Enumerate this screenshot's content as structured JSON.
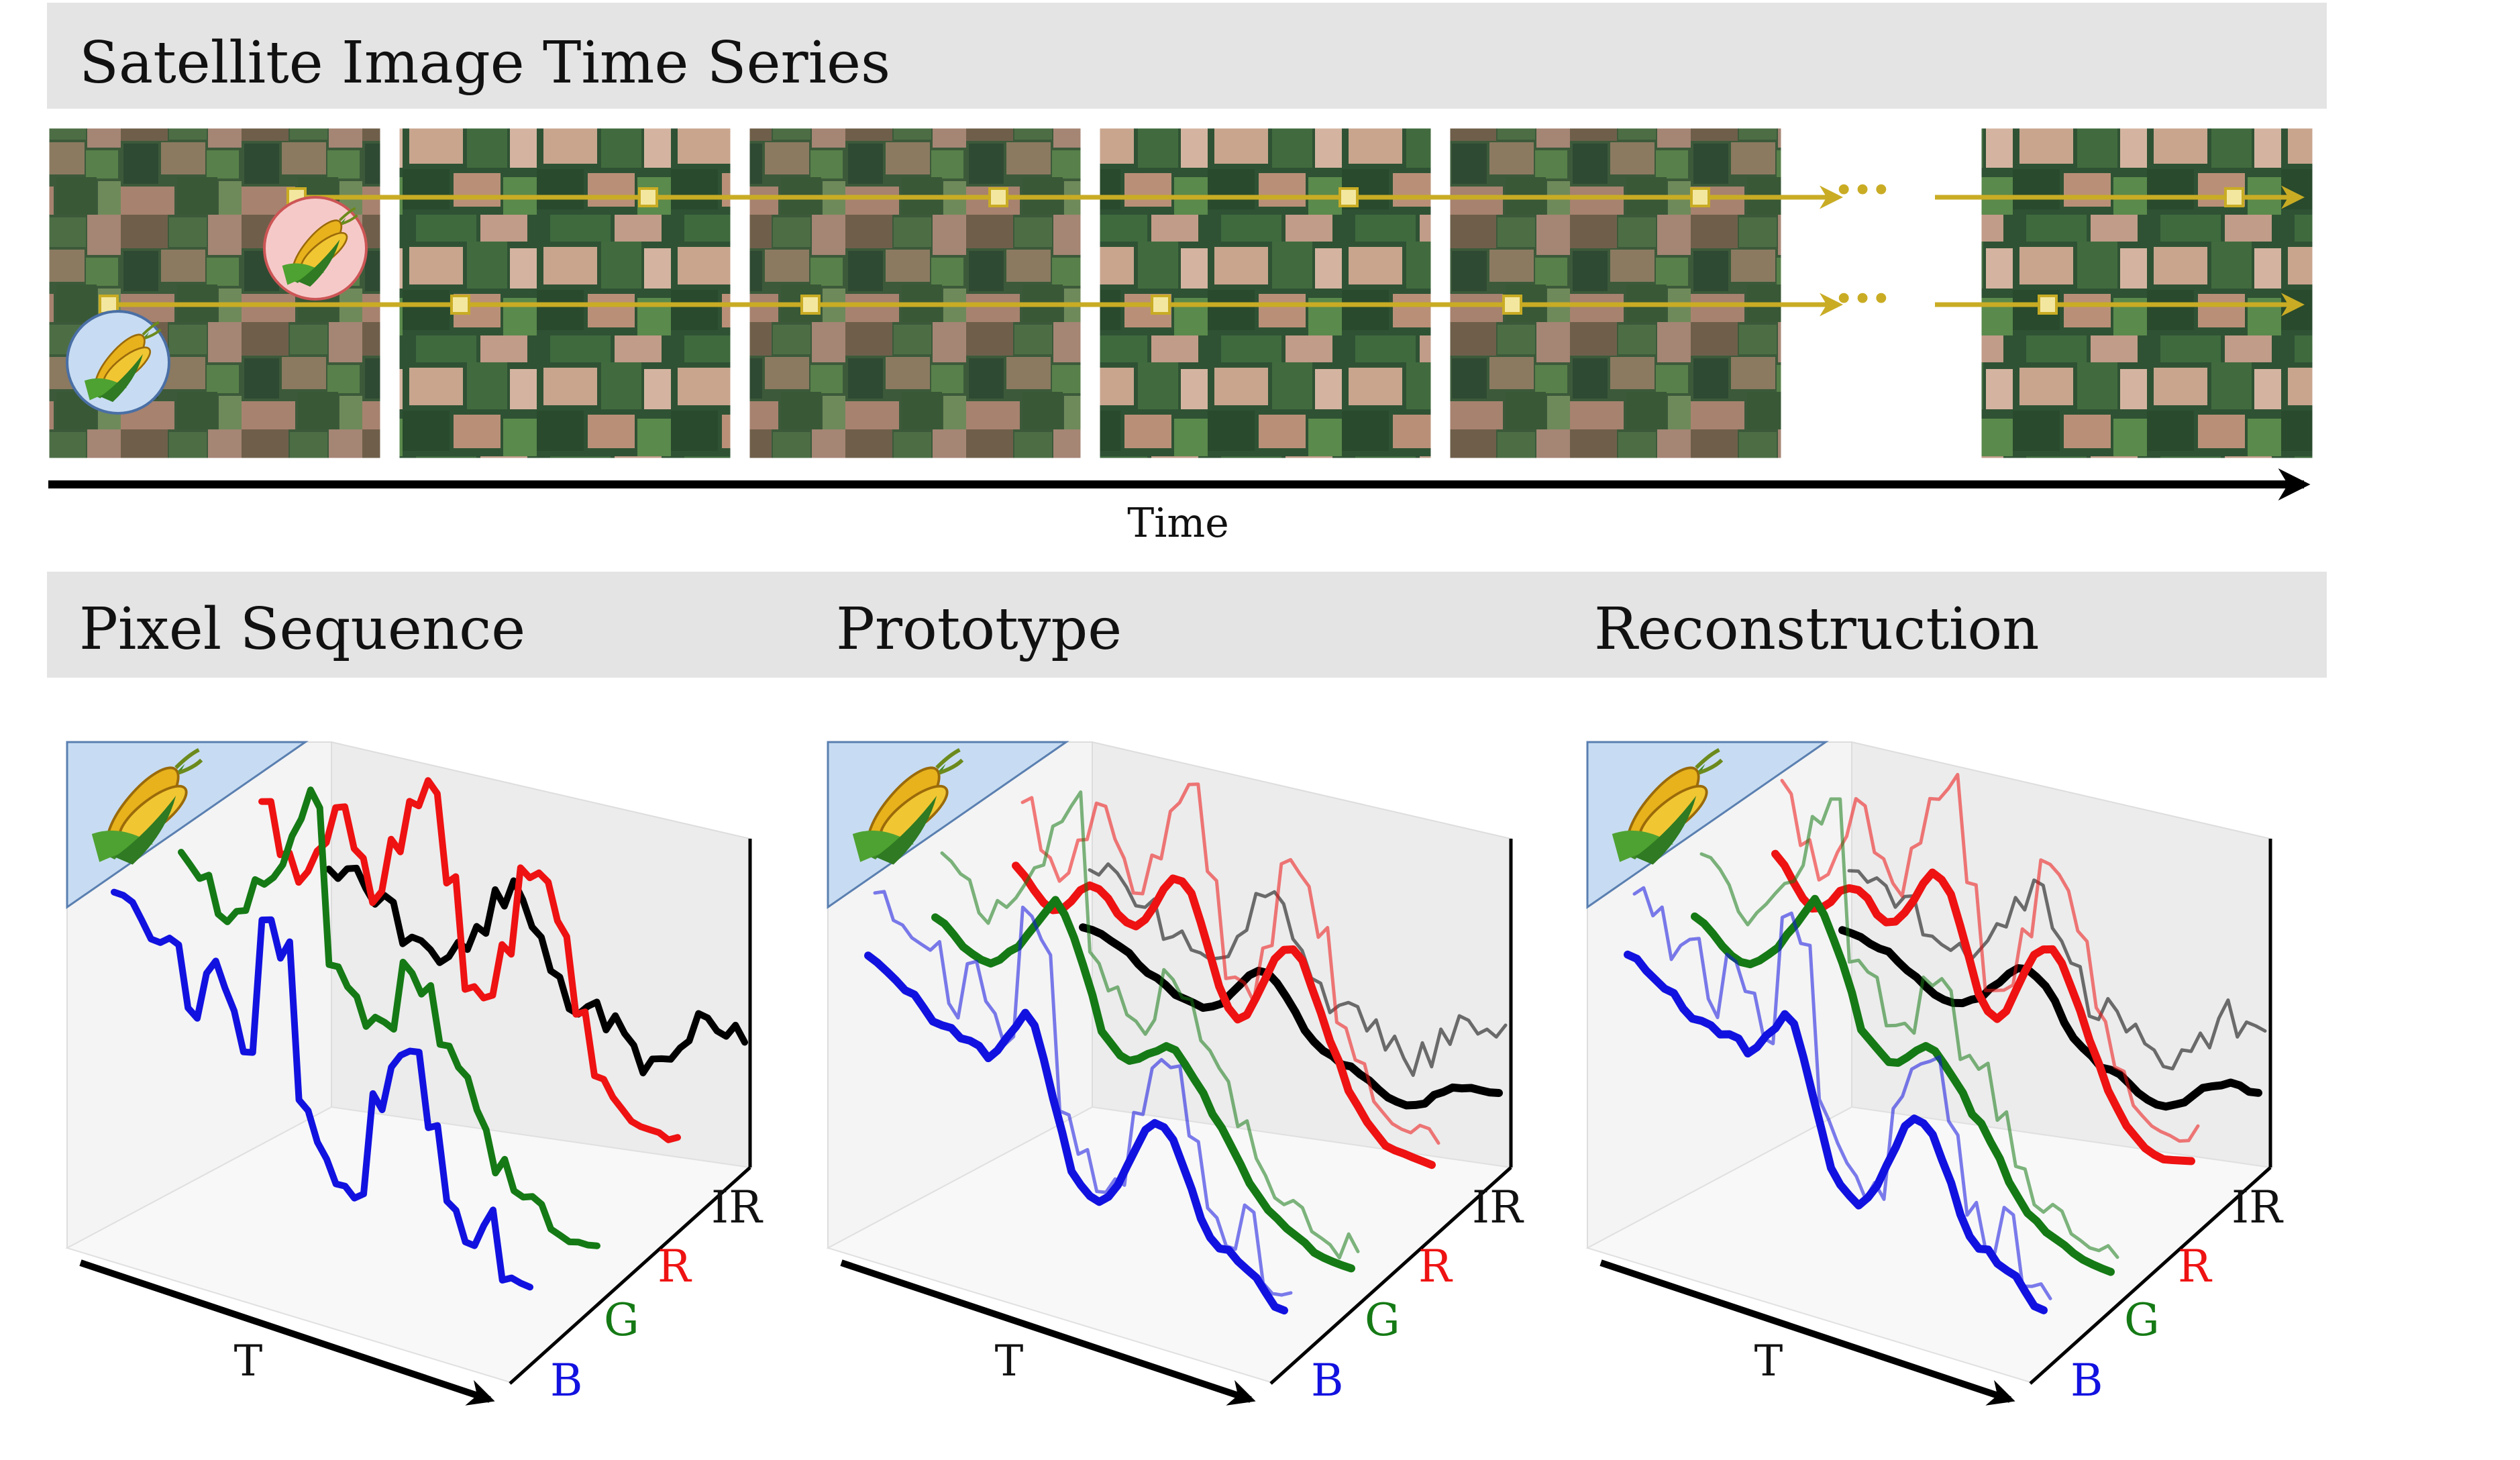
{
  "header": {
    "title": "Satellite Image Time Series"
  },
  "timeline": {
    "axis_label": "Time",
    "ellipsis": "···"
  },
  "section_titles": [
    "Pixel Sequence",
    "Prototype",
    "Reconstruction"
  ],
  "plot_axes": {
    "time": "T",
    "bands": [
      "B",
      "G",
      "R",
      "IR"
    ]
  },
  "colors": {
    "banner": "#e4e4e4",
    "track": "#c9ac24",
    "marker_fill": "#f3e7a0",
    "band_B": "#1212e0",
    "band_G": "#157a15",
    "band_R": "#ee1212",
    "band_IR": "#000000",
    "crop_badge_top": "#f6c9c9",
    "crop_badge_bottom": "#c7dcf2",
    "crop_corner": "#c7dcf2"
  },
  "icons": {
    "crop": "corn-icon"
  }
}
